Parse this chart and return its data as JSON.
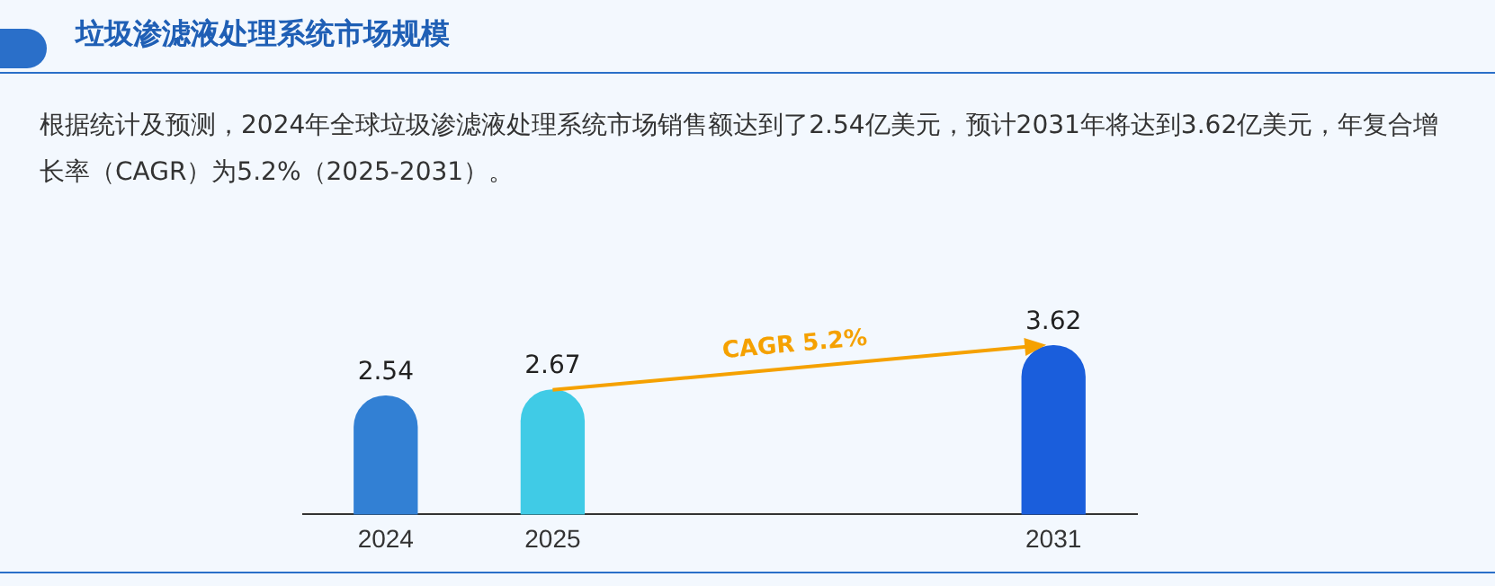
{
  "chart_data": {
    "type": "bar",
    "title": "垃圾渗滤液处理系统市场规模",
    "subtitle": "根据统计及预测，2024年全球垃圾渗滤液处理系统市场销售额达到了2.54亿美元，预计2031年将达到3.62亿美元，年复合增长率（CAGR）为5.2%（2025-2031）。",
    "categories": [
      "2024",
      "2025",
      null,
      null,
      "2031"
    ],
    "values": [
      2.54,
      2.67,
      null,
      null,
      3.62
    ],
    "colors": [
      "#3280d4",
      "#40cbe6",
      null,
      null,
      "#1a5edc"
    ],
    "data_labels": true,
    "annotations": [
      "CAGR 5.2%"
    ],
    "grid": false,
    "legend": false
  }
}
